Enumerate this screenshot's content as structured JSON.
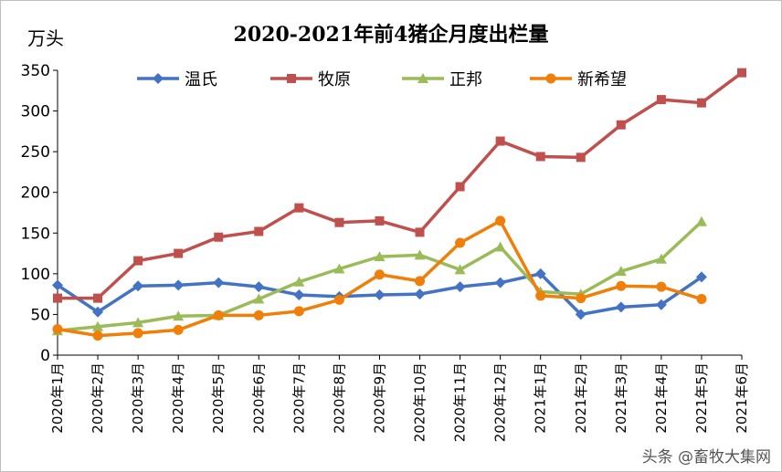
{
  "chart_data": {
    "type": "line",
    "title": "2020-2021年前4猪企月度出栏量",
    "ylabel": "万头",
    "ylim": [
      0,
      350
    ],
    "yticks": [
      0,
      50,
      100,
      150,
      200,
      250,
      300,
      350
    ],
    "grid": false,
    "legend_position": "top",
    "categories": [
      "2020年1月",
      "2020年2月",
      "2020年3月",
      "2020年4月",
      "2020年5月",
      "2020年6月",
      "2020年7月",
      "2020年8月",
      "2020年9月",
      "2020年10月",
      "2020年11月",
      "2020年12月",
      "2021年1月",
      "2021年2月",
      "2021年3月",
      "2021年4月",
      "2021年5月",
      "2021年6月"
    ],
    "series": [
      {
        "name": "温氏",
        "color": "#4472c4",
        "marker": "diamond",
        "values": [
          86,
          53,
          85,
          86,
          89,
          84,
          74,
          72,
          74,
          75,
          84,
          89,
          100,
          50,
          59,
          62,
          96,
          null
        ]
      },
      {
        "name": "牧原",
        "color": "#c0504d",
        "marker": "square",
        "values": [
          70,
          70,
          116,
          125,
          145,
          152,
          181,
          163,
          165,
          151,
          207,
          263,
          244,
          243,
          283,
          314,
          310,
          347
        ]
      },
      {
        "name": "正邦",
        "color": "#9bbb59",
        "marker": "triangle",
        "values": [
          30,
          35,
          40,
          48,
          49,
          69,
          90,
          106,
          121,
          123,
          105,
          133,
          78,
          75,
          103,
          118,
          164,
          null
        ]
      },
      {
        "name": "新希望",
        "color": "#f07f09",
        "marker": "circle",
        "values": [
          32,
          24,
          27,
          31,
          49,
          49,
          54,
          68,
          99,
          91,
          138,
          165,
          73,
          70,
          85,
          84,
          69,
          null
        ]
      }
    ]
  },
  "watermark": "头条 @畜牧大集网"
}
